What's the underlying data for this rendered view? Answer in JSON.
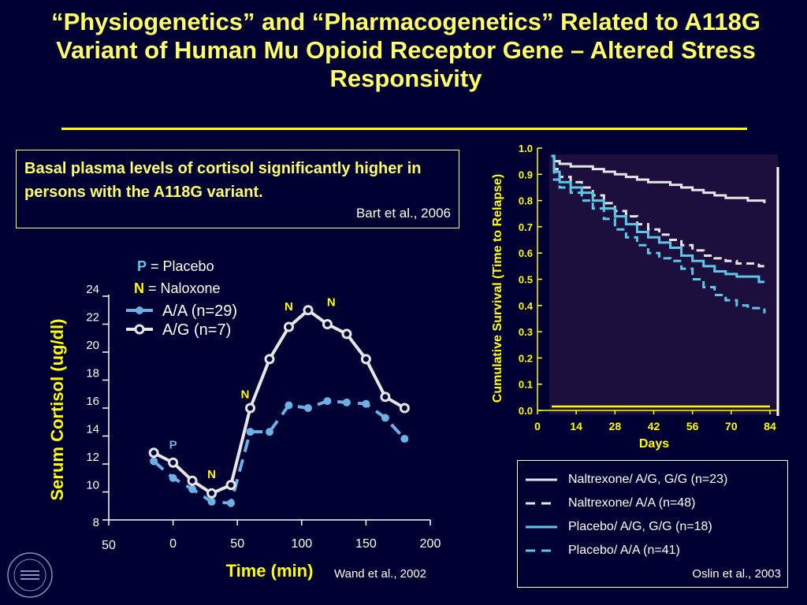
{
  "title": "“Physiogenetics” and “Pharmacogenetics” Related to A118G Variant of Human Mu Opioid Receptor Gene – Altered Stress Responsivity",
  "textbox": {
    "message": "Basal plasma levels of cortisol significantly higher in persons with the A118G variant.",
    "citation": "Bart et al., 2006"
  },
  "left_chart_citation": "Wand et al., 2002",
  "right_chart_citation": "Oslin et al., 2003",
  "colors": {
    "background": "#000033",
    "title": "#ffff66",
    "axis_yellow": "#ffff00",
    "aa_blue": "#6cb0e6",
    "ag_white": "#e6e6e6",
    "survival_panel": "#1c0f3d"
  },
  "chart_data": [
    {
      "type": "line",
      "title": "",
      "xlabel": "Time (min)",
      "ylabel": "Serum Cortisol (ug/dl)",
      "xlim": [
        -50,
        200
      ],
      "ylim": [
        8,
        24
      ],
      "x_ticks": [
        "50",
        "0",
        "50",
        "100",
        "150",
        "200"
      ],
      "y_ticks": [
        "8",
        "10",
        "12",
        "14",
        "16",
        "18",
        "20",
        "22",
        "24"
      ],
      "annotations_key": [
        {
          "letter": "P",
          "text": "= Placebo"
        },
        {
          "letter": "N",
          "text": "= Naloxone"
        }
      ],
      "series": [
        {
          "name": "A/A (n=29)",
          "color": "#6cb0e6",
          "dashed": true,
          "x": [
            -15,
            0,
            15,
            30,
            45,
            60,
            75,
            90,
            105,
            120,
            135,
            150,
            165,
            180
          ],
          "y": [
            12.2,
            11.0,
            10.2,
            9.3,
            9.2,
            14.3,
            14.3,
            16.2,
            16.0,
            16.5,
            16.4,
            16.3,
            15.3,
            13.8
          ]
        },
        {
          "name": "A/G (n=7)",
          "color": "#e6e6e6",
          "dashed": false,
          "x": [
            -15,
            0,
            15,
            30,
            45,
            60,
            75,
            90,
            105,
            120,
            135,
            150,
            165,
            180
          ],
          "y": [
            12.8,
            12.1,
            10.8,
            9.9,
            10.5,
            16.0,
            19.5,
            21.8,
            23.0,
            22.0,
            21.3,
            19.5,
            16.8,
            16.0
          ]
        }
      ],
      "markers": [
        {
          "label": "P",
          "x": 0,
          "y": 13.1,
          "color": "#6cb0e6"
        },
        {
          "label": "N",
          "x": 30,
          "y": 11.0,
          "color": "#ffff00"
        },
        {
          "label": "N",
          "x": 56,
          "y": 16.7,
          "color": "#ffff00"
        },
        {
          "label": "N",
          "x": 90,
          "y": 23.0,
          "color": "#ffff00"
        },
        {
          "label": "N",
          "x": 123,
          "y": 23.3,
          "color": "#ffff00"
        }
      ]
    },
    {
      "type": "line",
      "title": "",
      "xlabel": "Days",
      "ylabel": "Cumulative Survival (Time to Relapse)",
      "xlim": [
        0,
        84
      ],
      "ylim": [
        0,
        1
      ],
      "x_ticks": [
        "0",
        "14",
        "28",
        "42",
        "56",
        "70",
        "84"
      ],
      "y_ticks": [
        "0.0",
        "0.1",
        "0.2",
        "0.3",
        "0.4",
        "0.5",
        "0.6",
        "0.7",
        "0.8",
        "0.9",
        "1.0"
      ],
      "series": [
        {
          "name": "Naltrexone/ A/G, G/G (n=23)",
          "color": "#e6e6e6",
          "dashed": false,
          "x": [
            5,
            6,
            8,
            12,
            16,
            20,
            24,
            28,
            32,
            36,
            40,
            44,
            48,
            52,
            56,
            60,
            64,
            68,
            72,
            76,
            80,
            82
          ],
          "y": [
            0.97,
            0.95,
            0.94,
            0.93,
            0.93,
            0.92,
            0.91,
            0.9,
            0.89,
            0.88,
            0.87,
            0.87,
            0.86,
            0.85,
            0.84,
            0.83,
            0.82,
            0.81,
            0.81,
            0.8,
            0.8,
            0.79
          ]
        },
        {
          "name": "Naltrexone/ A/A (n=48)",
          "color": "#e6e6e6",
          "dashed": true,
          "x": [
            5,
            6,
            8,
            12,
            16,
            20,
            24,
            28,
            32,
            36,
            40,
            44,
            48,
            52,
            56,
            60,
            64,
            68,
            72,
            76,
            80,
            82
          ],
          "y": [
            0.97,
            0.92,
            0.89,
            0.87,
            0.85,
            0.82,
            0.79,
            0.76,
            0.74,
            0.71,
            0.69,
            0.67,
            0.65,
            0.63,
            0.61,
            0.59,
            0.58,
            0.57,
            0.56,
            0.56,
            0.55,
            0.54
          ]
        },
        {
          "name": "Placebo/ A/G, G/G (n=18)",
          "color": "#5cc8e8",
          "dashed": false,
          "x": [
            5,
            6,
            8,
            12,
            16,
            20,
            24,
            28,
            32,
            36,
            40,
            44,
            48,
            52,
            56,
            60,
            64,
            68,
            72,
            76,
            80,
            82
          ],
          "y": [
            0.97,
            0.91,
            0.87,
            0.85,
            0.83,
            0.8,
            0.77,
            0.74,
            0.71,
            0.68,
            0.66,
            0.64,
            0.62,
            0.59,
            0.57,
            0.55,
            0.53,
            0.52,
            0.51,
            0.51,
            0.49,
            0.49
          ]
        },
        {
          "name": "Placebo/ A/A (n=41)",
          "color": "#5cc8e8",
          "dashed": true,
          "x": [
            5,
            6,
            8,
            12,
            16,
            20,
            24,
            28,
            32,
            36,
            40,
            44,
            48,
            52,
            56,
            60,
            64,
            68,
            72,
            76,
            80,
            82
          ],
          "y": [
            0.97,
            0.88,
            0.85,
            0.83,
            0.8,
            0.77,
            0.73,
            0.69,
            0.66,
            0.63,
            0.6,
            0.58,
            0.57,
            0.54,
            0.5,
            0.47,
            0.44,
            0.42,
            0.4,
            0.39,
            0.39,
            0.37
          ]
        }
      ]
    }
  ]
}
